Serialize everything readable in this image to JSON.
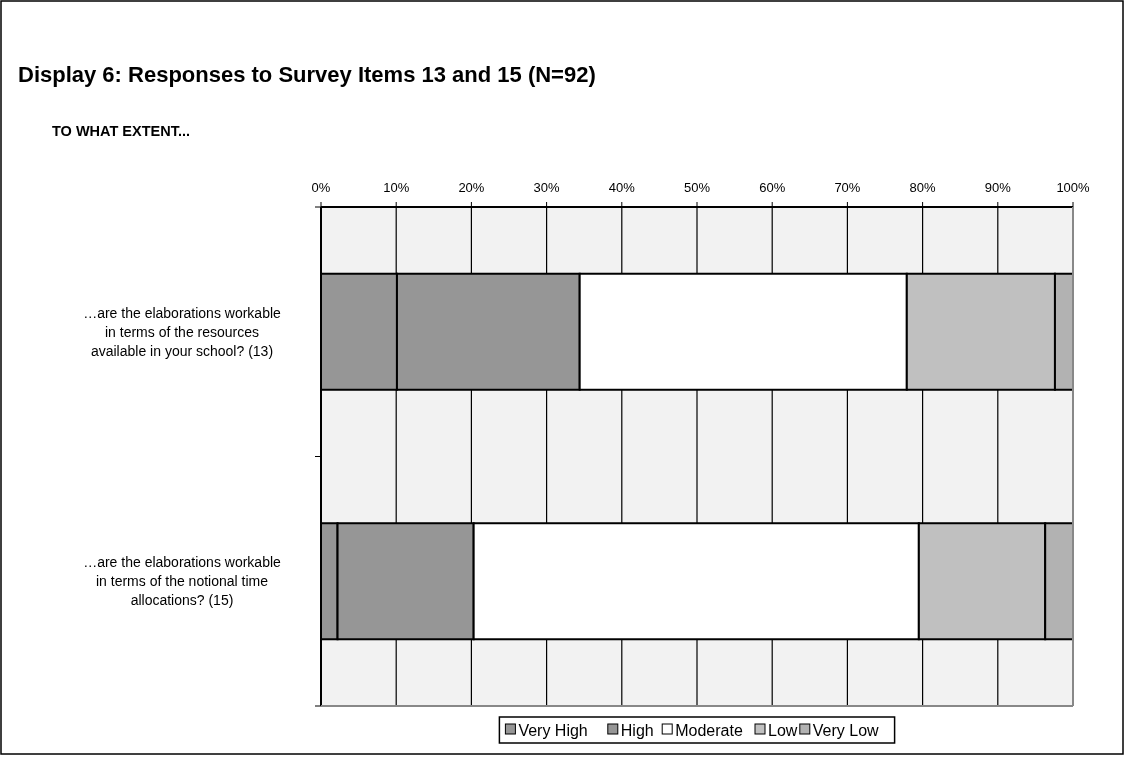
{
  "chart_data": {
    "type": "bar",
    "orientation": "horizontal",
    "stacked": true,
    "title": "Display 6: Responses to Survey Items 13 and 15 (N=92)",
    "subtitle": "TO WHAT EXTENT...",
    "categories": [
      "…are the elaborations workable in terms of the resources available in your school? (13)",
      "…are the elaborations workable in terms of the notional time allocations? (15)"
    ],
    "series": [
      {
        "name": "Very High",
        "color": "#969696",
        "values": [
          10.1,
          2.2
        ]
      },
      {
        "name": "High",
        "color": "#969696",
        "values": [
          24.3,
          18.1
        ]
      },
      {
        "name": "Moderate",
        "color": "#ffffff",
        "values": [
          43.5,
          59.2
        ]
      },
      {
        "name": "Low",
        "color": "#c0c0c0",
        "values": [
          19.7,
          16.8
        ]
      },
      {
        "name": "Very Low",
        "color": "#b2b2b2",
        "values": [
          2.4,
          3.7
        ]
      }
    ],
    "xlim": [
      0,
      100
    ],
    "xticks": [
      {
        "value": 0,
        "label": "0%"
      },
      {
        "value": 10,
        "label": "10%"
      },
      {
        "value": 20,
        "label": "20%"
      },
      {
        "value": 30,
        "label": "30%"
      },
      {
        "value": 40,
        "label": "40%"
      },
      {
        "value": 50,
        "label": "50%"
      },
      {
        "value": 60,
        "label": "60%"
      },
      {
        "value": 70,
        "label": "70%"
      },
      {
        "value": 80,
        "label": "80%"
      },
      {
        "value": 90,
        "label": "90%"
      },
      {
        "value": 100,
        "label": "100%"
      }
    ],
    "grid": "x",
    "legend": "bottom"
  }
}
